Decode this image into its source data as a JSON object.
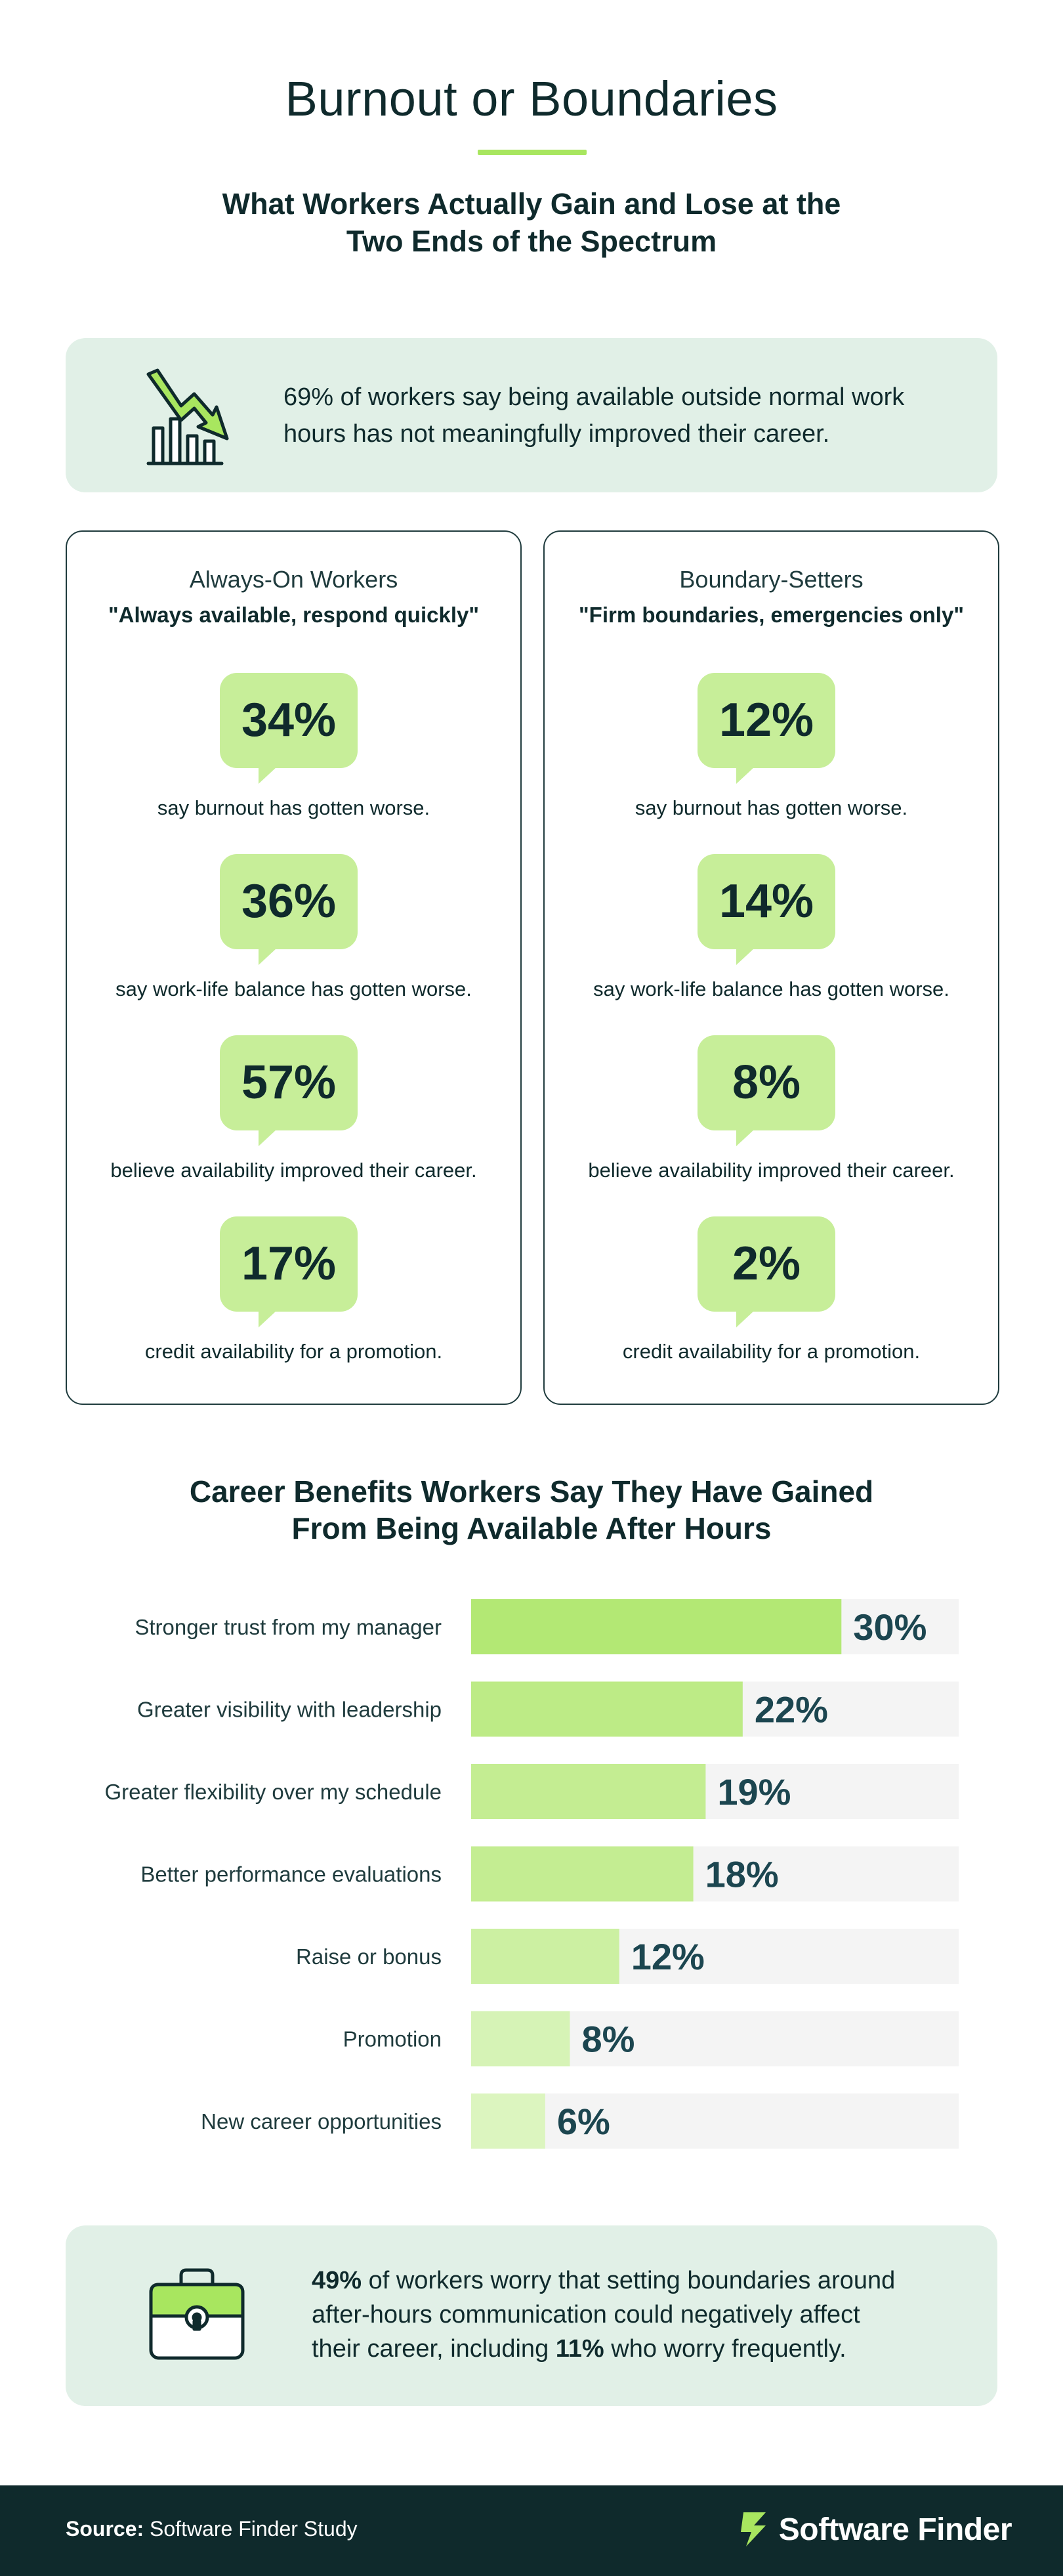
{
  "header": {
    "title": "Burnout or Boundaries",
    "subtitle_line1": "What Workers Actually Gain and Lose at the",
    "subtitle_line2": "Two Ends of the Spectrum"
  },
  "callout_top": {
    "icon": "chart-down-arrow-icon",
    "line1": "69% of workers say being available outside normal work",
    "line2": "hours has not meaningfully improved their career."
  },
  "comparison": {
    "always_on": {
      "title": "Always-On Workers",
      "quote": "\"Always available, respond quickly\"",
      "stats": [
        {
          "value": "34%",
          "caption": "say burnout has gotten worse."
        },
        {
          "value": "36%",
          "caption": "say work-life balance has gotten worse."
        },
        {
          "value": "57%",
          "caption": "believe availability improved their career."
        },
        {
          "value": "17%",
          "caption": "credit availability for a promotion."
        }
      ]
    },
    "boundary_setters": {
      "title": "Boundary-Setters",
      "quote": "\"Firm boundaries, emergencies only\"",
      "stats": [
        {
          "value": "12%",
          "caption": "say burnout has gotten worse."
        },
        {
          "value": "14%",
          "caption": "say work-life balance has gotten worse."
        },
        {
          "value": "8%",
          "caption": "believe availability improved their career."
        },
        {
          "value": "2%",
          "caption": "credit availability for a promotion."
        }
      ]
    }
  },
  "chart_data": {
    "type": "bar",
    "orientation": "horizontal",
    "title_line1": "Career Benefits Workers Say They Have Gained",
    "title_line2": "From Being Available After Hours",
    "categories": [
      "Stronger trust from my manager",
      "Greater visibility with leadership",
      "Greater flexibility over my schedule",
      "Better performance evaluations",
      "Raise or bonus",
      "Promotion",
      "New career opportunities"
    ],
    "values": [
      30,
      22,
      19,
      18,
      12,
      8,
      6
    ],
    "labels": [
      "30%",
      "22%",
      "19%",
      "18%",
      "12%",
      "8%",
      "6%"
    ],
    "xlim": [
      0,
      39.5
    ],
    "bar_colors": [
      "#b3e874",
      "#bdeb86",
      "#c4ed92",
      "#c4ed92",
      "#ccf0a2",
      "#d6f3b6",
      "#dcf5bf"
    ],
    "track_color": "#f4f4f4",
    "label_color": "#1c4650"
  },
  "callout_bottom": {
    "icon": "briefcase-lock-icon",
    "line1_bold": "49%",
    "line1_rest": " of workers worry that setting boundaries around",
    "line2": "after-hours communication could negatively affect",
    "line3_pre": "their career, including ",
    "line3_bold": "11%",
    "line3_post": " who worry frequently."
  },
  "footer": {
    "source_label": "Source:",
    "source_text": " Software Finder Study",
    "brand_name": "Software Finder",
    "brand_icon": "software-finder-logo-icon"
  },
  "colors": {
    "dark": "#0f2a2c",
    "accent_green": "#a8e65f",
    "bubble_green": "#c7ee99",
    "callout_bg": "#e1f0e7"
  }
}
